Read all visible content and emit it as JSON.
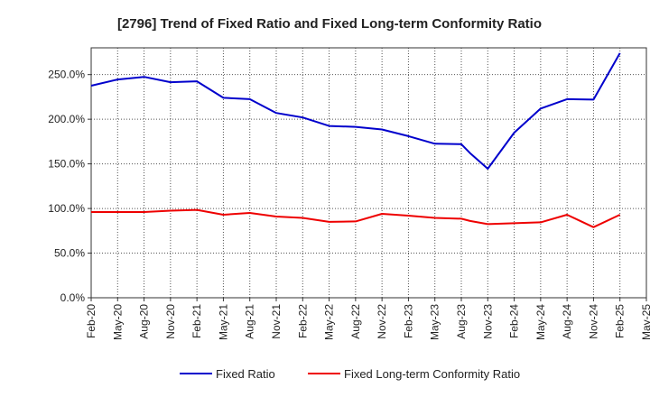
{
  "colors": {
    "fixed_ratio": "#0000cc",
    "conformity_ratio": "#ee0000",
    "grid": "#555555",
    "axis": "#333333"
  },
  "chart_data": {
    "type": "line",
    "title": "[2796]  Trend of Fixed Ratio and Fixed Long-term Conformity Ratio",
    "xlabel": "",
    "ylabel": "",
    "x_tick_labels": [
      "Feb-20",
      "May-20",
      "Aug-20",
      "Nov-20",
      "Feb-21",
      "May-21",
      "Aug-21",
      "Nov-21",
      "Feb-22",
      "May-22",
      "Aug-22",
      "Nov-22",
      "Feb-23",
      "May-23",
      "Aug-23",
      "Nov-23",
      "Feb-24",
      "May-24",
      "Aug-24",
      "Nov-24",
      "Feb-25",
      "May-25"
    ],
    "y_tick_labels": [
      "0.0%",
      "50.0%",
      "100.0%",
      "150.0%",
      "200.0%",
      "250.0%"
    ],
    "y_ticks": [
      0,
      50,
      100,
      150,
      200,
      250
    ],
    "ylim": [
      0,
      280
    ],
    "grid": true,
    "legend_position": "bottom",
    "x": [
      "Feb-20",
      "May-20",
      "Aug-20",
      "Nov-20",
      "Feb-21",
      "May-21",
      "Aug-21",
      "Nov-21",
      "Feb-22",
      "May-22",
      "Aug-22",
      "Nov-22",
      "Feb-23",
      "May-23",
      "Aug-23",
      "Sep-23",
      "Nov-23",
      "Feb-24",
      "May-24",
      "Aug-24",
      "Nov-24",
      "Feb-25"
    ],
    "x_index": [
      0,
      1,
      2,
      3,
      4,
      5,
      6,
      7,
      8,
      9,
      10,
      11,
      12,
      13,
      14,
      14.33,
      15,
      16,
      17,
      18,
      19,
      20
    ],
    "series": [
      {
        "name": "Fixed Ratio",
        "color": "#0000cc",
        "values": [
          237.5,
          244.5,
          247.5,
          241.5,
          242.5,
          224,
          222.5,
          207,
          202,
          192.5,
          191.5,
          188.5,
          181,
          172.5,
          172,
          162,
          144.5,
          185,
          212,
          222.5,
          222,
          274
        ]
      },
      {
        "name": "Fixed Long-term Conformity Ratio",
        "color": "#ee0000",
        "values": [
          96,
          96,
          96,
          97.5,
          98.5,
          93,
          95,
          91,
          89.5,
          85,
          85.5,
          94,
          92,
          89.5,
          88.5,
          86,
          82.5,
          83.5,
          84.5,
          93,
          79,
          93
        ]
      }
    ]
  }
}
